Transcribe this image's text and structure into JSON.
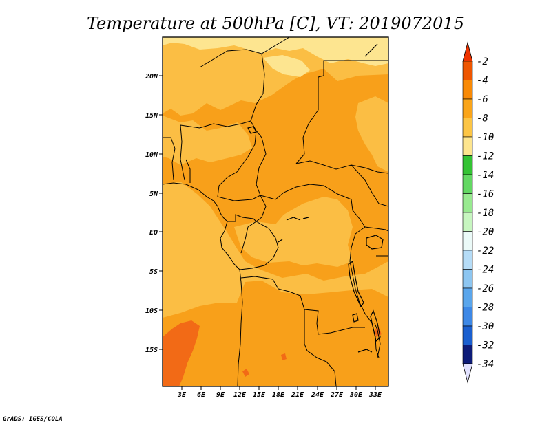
{
  "title": "Temperature at 500hPa [C], VT: 2019072015",
  "credit": "GrADS: IGES/COLA",
  "map": {
    "lon_ticks": [
      "3E",
      "6E",
      "9E",
      "12E",
      "15E",
      "18E",
      "21E",
      "24E",
      "27E",
      "30E",
      "33E"
    ],
    "lat_ticks": [
      "20N",
      "15N",
      "10N",
      "5N",
      "EQ",
      "5S",
      "10S",
      "15S"
    ],
    "field_colors": {
      "minus10_to_minus8": "#fde590",
      "minus8_to_minus6": "#fbbe44",
      "minus6_to_minus4": "#f8a01a",
      "minus4_to_minus2": "#f26a16"
    }
  },
  "colorbar": {
    "labels": [
      "-2",
      "-4",
      "-6",
      "-8",
      "-10",
      "-12",
      "-14",
      "-16",
      "-18",
      "-20",
      "-22",
      "-24",
      "-26",
      "-28",
      "-30",
      "-32",
      "-34"
    ],
    "colors": [
      "#ee5500",
      "#f98a06",
      "#faa51a",
      "#fcc545",
      "#fde58e",
      "#fff9bd",
      "#34c334",
      "#63d863",
      "#98ea90",
      "#c7f6c0",
      "#ebfaf8",
      "#b5dcf7",
      "#8dc6f1",
      "#5aa6ec",
      "#3d88e6",
      "#1a5fcf",
      "#1445b8",
      "#0d1b78"
    ],
    "top_arrow_color": "#ee3300",
    "bottom_arrow_color": "#e2e2ff"
  }
}
